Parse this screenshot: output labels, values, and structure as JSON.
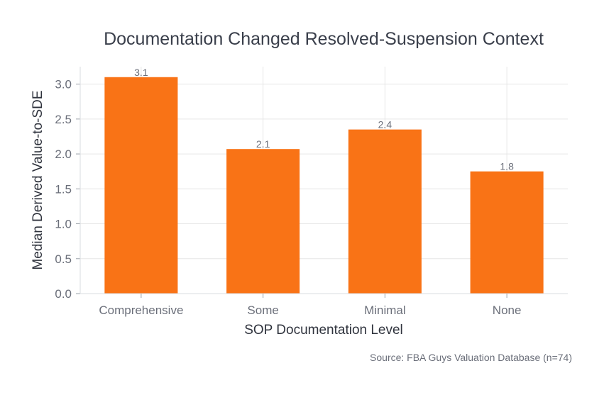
{
  "chart_data": {
    "type": "bar",
    "title": "Documentation Changed Resolved-Suspension Context",
    "xlabel": "SOP Documentation Level",
    "ylabel": "Median Derived Value-to-SDE",
    "categories": [
      "Comprehensive",
      "Some",
      "Minimal",
      "None"
    ],
    "values": [
      3.1,
      2.07,
      2.35,
      1.75
    ],
    "value_labels": [
      "3.1",
      "2.1",
      "2.4",
      "1.8"
    ],
    "ylim": [
      0,
      3.25
    ],
    "yticks": [
      0,
      0.5,
      1.0,
      1.5,
      2.0,
      2.5,
      3.0
    ],
    "ytick_labels": [
      "0.0",
      "0.5",
      "1.0",
      "1.5",
      "2.0",
      "2.5",
      "3.0"
    ],
    "grid": true,
    "bar_color": "#f97316",
    "source": "Source: FBA Guys Valuation Database (n=74)"
  }
}
